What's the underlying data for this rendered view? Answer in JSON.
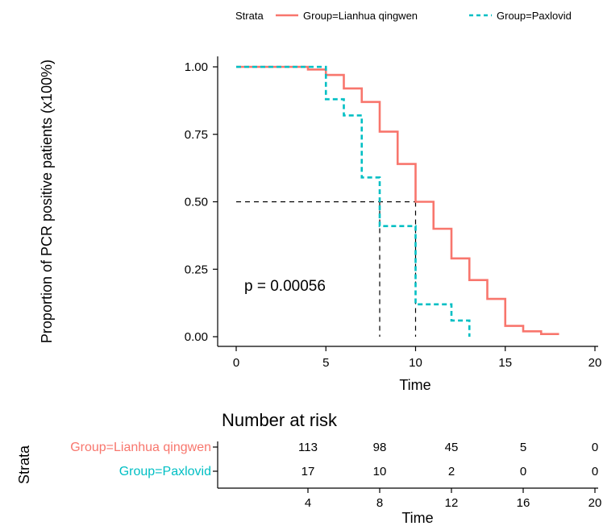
{
  "chart_data": {
    "type": "line",
    "ylabel": "Proportion of PCR positive patients (x100%)",
    "xlabel": "Time",
    "xlim": [
      0,
      20
    ],
    "ylim": [
      0,
      1
    ],
    "x_ticks": [
      0,
      5,
      10,
      15,
      20
    ],
    "y_ticks": [
      0.0,
      0.25,
      0.5,
      0.75,
      1.0
    ],
    "y_tick_labels": [
      "0.00",
      "0.25",
      "0.50",
      "0.75",
      "1.00"
    ],
    "legend": {
      "title": "Strata",
      "position": "top"
    },
    "annotation": "p = 0.00056",
    "median_line": {
      "y": 0.5,
      "medians": [
        8,
        10
      ]
    },
    "series": [
      {
        "name": "Group=Lianhua qingwen",
        "color": "#F8766D",
        "dash": "solid",
        "steps": [
          [
            0,
            1.0
          ],
          [
            4,
            0.99
          ],
          [
            5,
            0.97
          ],
          [
            6,
            0.92
          ],
          [
            7,
            0.87
          ],
          [
            8,
            0.76
          ],
          [
            9,
            0.64
          ],
          [
            10,
            0.5
          ],
          [
            11,
            0.4
          ],
          [
            12,
            0.29
          ],
          [
            13,
            0.21
          ],
          [
            14,
            0.14
          ],
          [
            15,
            0.04
          ],
          [
            16,
            0.02
          ],
          [
            17,
            0.01
          ],
          [
            18,
            0.01
          ]
        ]
      },
      {
        "name": "Group=Paxlovid",
        "color": "#00BFC4",
        "dash": "dashed",
        "steps": [
          [
            0,
            1.0
          ],
          [
            5,
            0.88
          ],
          [
            6,
            0.82
          ],
          [
            7,
            0.59
          ],
          [
            8,
            0.41
          ],
          [
            10,
            0.12
          ],
          [
            12,
            0.06
          ],
          [
            13,
            0.0
          ]
        ]
      }
    ]
  },
  "risk_table": {
    "title": "Number at risk",
    "strata_label": "Strata",
    "xlabel": "Time",
    "x_ticks": [
      4,
      8,
      12,
      16,
      20
    ],
    "rows": [
      {
        "name": "Group=Lianhua qingwen",
        "color": "#F8766D",
        "values": [
          "113",
          "98",
          "45",
          "5",
          "0"
        ]
      },
      {
        "name": "Group=Paxlovid",
        "color": "#00BFC4",
        "values": [
          "17",
          "10",
          "2",
          "0",
          "0"
        ]
      }
    ]
  }
}
